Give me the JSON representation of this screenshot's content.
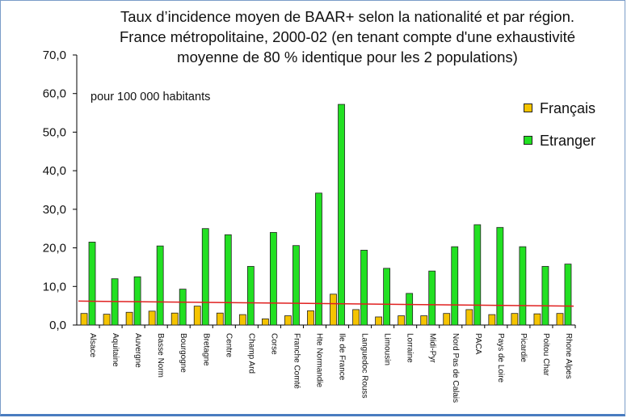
{
  "chart_data": {
    "type": "bar",
    "title_lines": [
      "Taux d’incidence moyen de BAAR+ selon la nationalité et par région.",
      "France métropolitaine, 2000-02 (en tenant compte d'une exhaustivité",
      "moyenne de 80 % identique pour les 2 populations)"
    ],
    "unit_label": "pour 100 000 habitants",
    "ylim": [
      0,
      70
    ],
    "yticks": [
      "0,0",
      "10,0",
      "20,0",
      "30,0",
      "40,0",
      "50,0",
      "60,0",
      "70,0"
    ],
    "categories": [
      "Alsace",
      "Aquitaine",
      "Auvergne",
      "Basse Norm",
      "Bourgogne",
      "Bretagne",
      "Centre",
      "Champ Ard",
      "Corse",
      "Franche Comté",
      "Hte Normandie",
      "Ile de France",
      "Languedoc Rouss",
      "Limousin",
      "Lorraine",
      "Midi-Pyr",
      "Nord Pas de Calais",
      "PACA",
      "Pays de Loire",
      "Picardie",
      "Poitou Char",
      "Rhone Alpes"
    ],
    "series": [
      {
        "name": "Français",
        "color": "#f5c400",
        "values": [
          3.0,
          2.8,
          3.3,
          3.6,
          3.1,
          4.9,
          3.1,
          2.7,
          1.6,
          2.4,
          3.7,
          8.0,
          4.0,
          2.1,
          2.4,
          2.4,
          3.0,
          4.0,
          2.7,
          3.0,
          2.9,
          3.0
        ]
      },
      {
        "name": "Etranger",
        "color": "#22e022",
        "values": [
          21.5,
          12.0,
          12.5,
          20.5,
          9.3,
          25.0,
          23.4,
          15.2,
          24.0,
          20.6,
          34.2,
          57.2,
          19.4,
          14.7,
          8.2,
          14.0,
          20.3,
          26.0,
          25.3,
          20.3,
          15.2,
          15.8
        ]
      }
    ],
    "trendline": {
      "color": "#e02020",
      "start": 6.2,
      "end": 4.9
    },
    "grid": false,
    "legend_position": "right"
  }
}
